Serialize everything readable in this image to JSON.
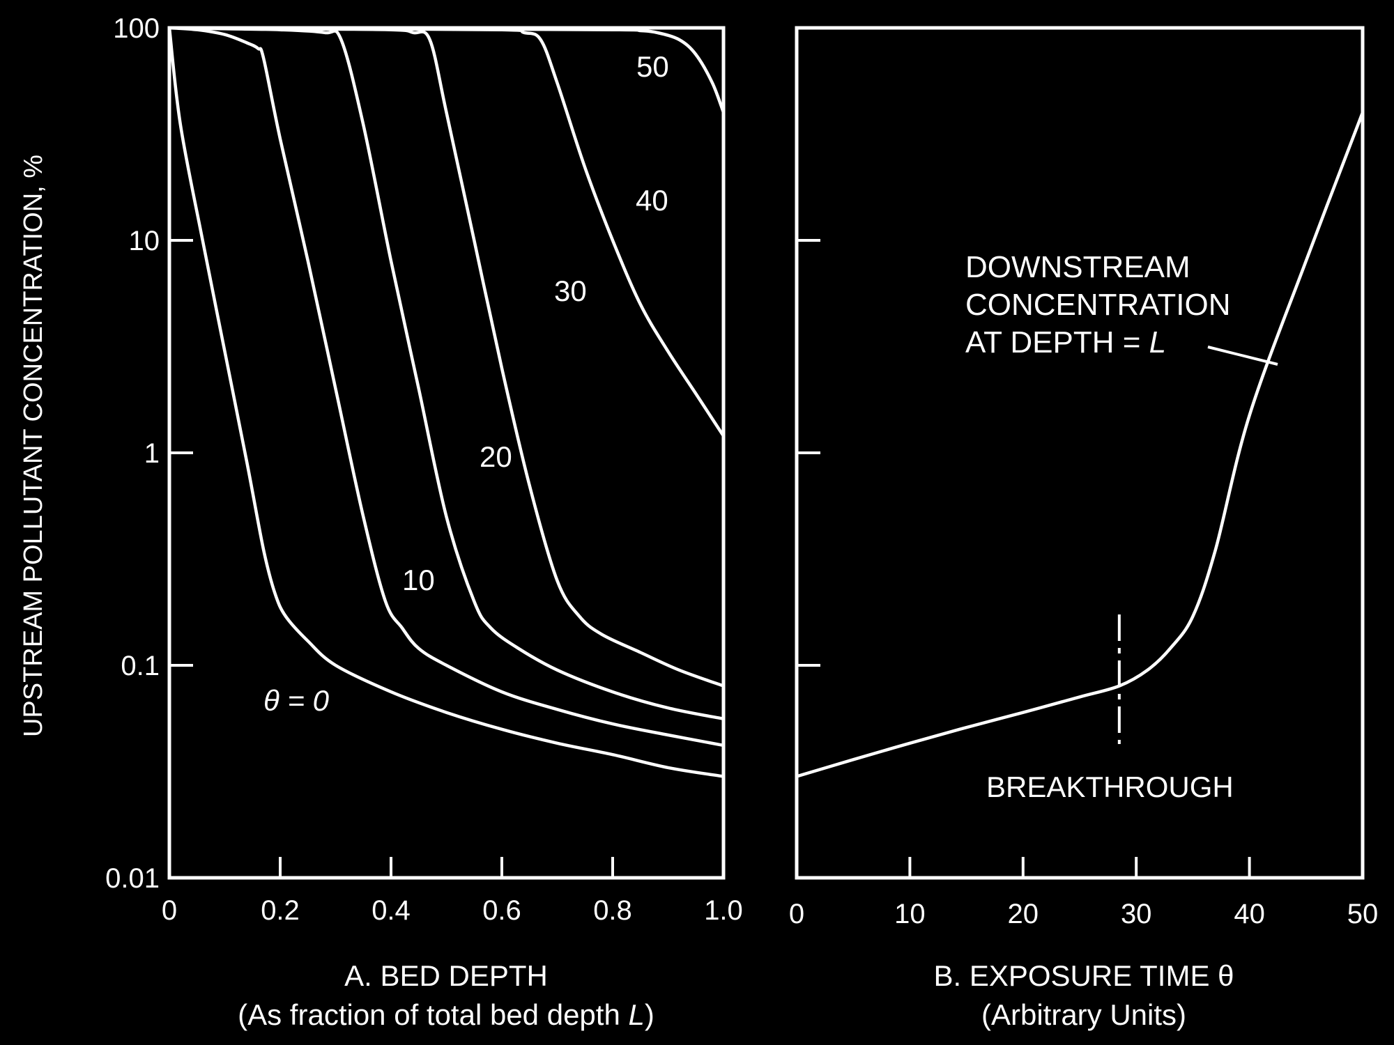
{
  "chart_data": [
    {
      "type": "line",
      "panel": "A",
      "title": "",
      "xlabel_line1": "A.  BED DEPTH",
      "xlabel_line2_prefix": "(As fraction of total bed depth ",
      "xlabel_line2_var": "L",
      "xlabel_line2_suffix": ")",
      "ylabel": "UPSTREAM POLLUTANT CONCENTRATION, %",
      "yscale": "log",
      "xlim": [
        0,
        1.0
      ],
      "ylim": [
        0.01,
        100
      ],
      "x_ticks": [
        "0",
        "0.2",
        "0.4",
        "0.6",
        "0.8",
        "1.0"
      ],
      "y_ticks": [
        "0.01",
        "0.1",
        "1",
        "10",
        "100"
      ],
      "series": [
        {
          "label": "θ = 0",
          "x": [
            0,
            0.02,
            0.06,
            0.1,
            0.14,
            0.17,
            0.19,
            0.21,
            0.25,
            0.3,
            0.4,
            0.5,
            0.6,
            0.7,
            0.8,
            0.9,
            1.0
          ],
          "y": [
            100,
            35,
            10,
            3,
            0.9,
            0.35,
            0.22,
            0.17,
            0.13,
            0.1,
            0.075,
            0.06,
            0.05,
            0.043,
            0.038,
            0.033,
            0.03
          ]
        },
        {
          "label": "10",
          "x": [
            0,
            0.05,
            0.1,
            0.14,
            0.16,
            0.17,
            0.2,
            0.25,
            0.3,
            0.35,
            0.39,
            0.42,
            0.45,
            0.5,
            0.6,
            0.7,
            0.8,
            0.9,
            1.0
          ],
          "y": [
            100,
            98,
            93,
            85,
            80,
            72,
            30,
            8,
            2,
            0.5,
            0.2,
            0.15,
            0.12,
            0.1,
            0.075,
            0.062,
            0.053,
            0.047,
            0.042
          ]
        },
        {
          "label": "20",
          "x": [
            0,
            0.1,
            0.2,
            0.28,
            0.31,
            0.35,
            0.4,
            0.45,
            0.5,
            0.55,
            0.58,
            0.63,
            0.7,
            0.8,
            0.9,
            1.0
          ],
          "y": [
            100,
            99,
            98,
            95,
            88,
            35,
            8,
            2,
            0.5,
            0.2,
            0.15,
            0.12,
            0.095,
            0.075,
            0.063,
            0.056
          ]
        },
        {
          "label": "30",
          "x": [
            0,
            0.2,
            0.4,
            0.44,
            0.47,
            0.5,
            0.55,
            0.6,
            0.65,
            0.7,
            0.74,
            0.78,
            0.85,
            0.92,
            1.0
          ],
          "y": [
            100,
            99,
            98,
            95,
            88,
            40,
            10,
            2.5,
            0.7,
            0.25,
            0.17,
            0.14,
            0.115,
            0.095,
            0.08
          ]
        },
        {
          "label": "40",
          "x": [
            0,
            0.3,
            0.6,
            0.64,
            0.67,
            0.7,
            0.75,
            0.8,
            0.85,
            0.9,
            0.95,
            1.0
          ],
          "y": [
            100,
            99,
            98,
            95,
            88,
            55,
            22,
            10,
            5,
            3,
            1.9,
            1.2
          ]
        },
        {
          "label": "50",
          "x": [
            0,
            0.4,
            0.8,
            0.85,
            0.88,
            0.92,
            0.95,
            0.98,
            1.0
          ],
          "y": [
            100,
            99,
            98,
            97,
            95,
            88,
            75,
            55,
            40
          ]
        }
      ]
    },
    {
      "type": "line",
      "panel": "B",
      "title": "",
      "xlabel_line1": "B.  EXPOSURE TIME θ",
      "xlabel_line2": "(Arbitrary Units)",
      "yscale": "log",
      "xlim": [
        0,
        50
      ],
      "ylim": [
        0.01,
        100
      ],
      "x_ticks": [
        "0",
        "10",
        "20",
        "30",
        "40",
        "50"
      ],
      "series": [
        {
          "label": "DOWNSTREAM CONCENTRATION AT DEPTH = L",
          "x": [
            0,
            5,
            10,
            15,
            20,
            25,
            28.5,
            31,
            33,
            35,
            37,
            40,
            45,
            50
          ],
          "y": [
            0.03,
            0.036,
            0.043,
            0.051,
            0.06,
            0.071,
            0.08,
            0.095,
            0.12,
            0.17,
            0.35,
            1.5,
            8,
            40
          ]
        }
      ],
      "annotations": {
        "curve_label_lines": [
          "DOWNSTREAM",
          "CONCENTRATION",
          "AT DEPTH = "
        ],
        "curve_label_var": "L",
        "breakthrough_label": "BREAKTHROUGH",
        "breakthrough_x": 28.5
      }
    }
  ]
}
